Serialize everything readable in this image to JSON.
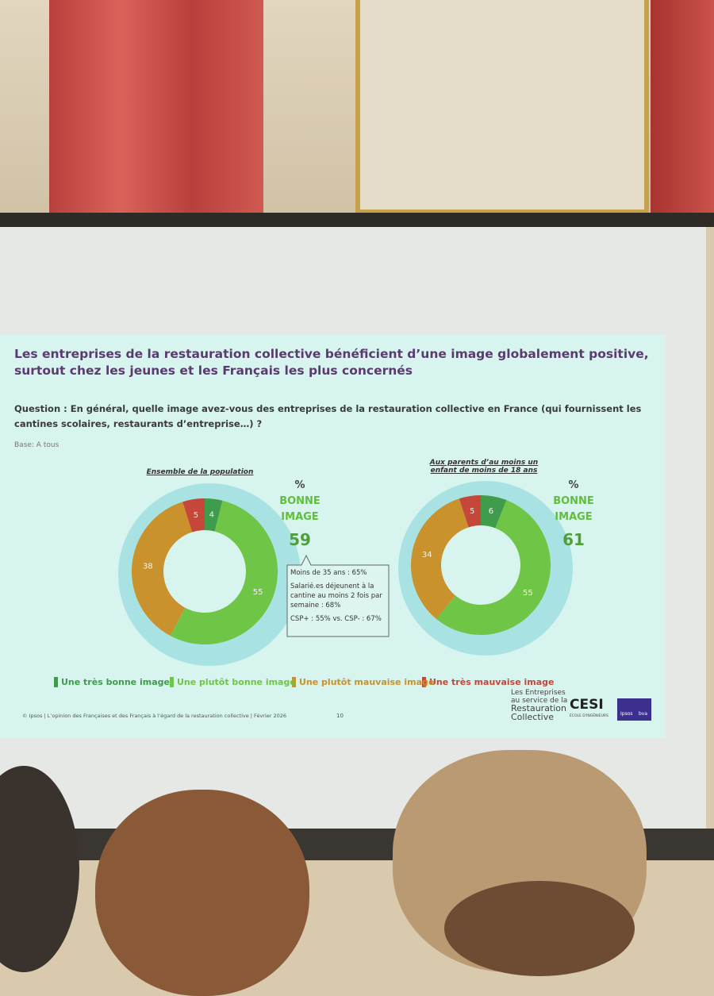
{
  "slide": {
    "title": "Les entreprises de la restauration collective bénéficient d’une image globalement positive, surtout chez les jeunes et les Français les plus concernés",
    "question": "Question : En général, quelle image avez-vous des entreprises de la restauration collective en France (qui fournissent les cantines scolaires, restaurants d’entreprise…) ?",
    "base": "Base: A tous",
    "footer": "© Ipsos | L’opinion des Françaises et des Français à l’égard de la restauration collective | Février 2026",
    "page_number": "10",
    "logo_lines": [
      "Les Entreprises",
      "au service de la",
      "Restauration",
      "Collective"
    ],
    "cesi": "CESI",
    "cesi_sub": "ÉCOLE D'INGÉNIEURS",
    "ipsos": "Ipsos",
    "bva": "bva"
  },
  "chart_data": {
    "type": "pie",
    "donut": true,
    "categories": [
      "Une très bonne image",
      "Une plutôt bonne image",
      "Une plutôt mauvaise image",
      "Une très mauvaise image"
    ],
    "colors": [
      "#3f9c4c",
      "#6fc545",
      "#c9922c",
      "#c4473a"
    ],
    "kpi_unit": "%",
    "kpi_label": "BONNE IMAGE",
    "series": [
      {
        "name": "Ensemble de la population",
        "values": [
          4,
          55,
          38,
          5
        ],
        "kpi": 59
      },
      {
        "name": "Aux parents d’au moins un enfant de moins de 18 ans",
        "values": [
          6,
          55,
          34,
          5
        ],
        "kpi": 61
      }
    ],
    "annotation": [
      "Moins de 35 ans : 65%",
      "Salarié.es déjeunent à la cantine au moins 2 fois par semaine : 68%",
      "CSP+ : 55% vs. CSP- : 67%"
    ]
  }
}
